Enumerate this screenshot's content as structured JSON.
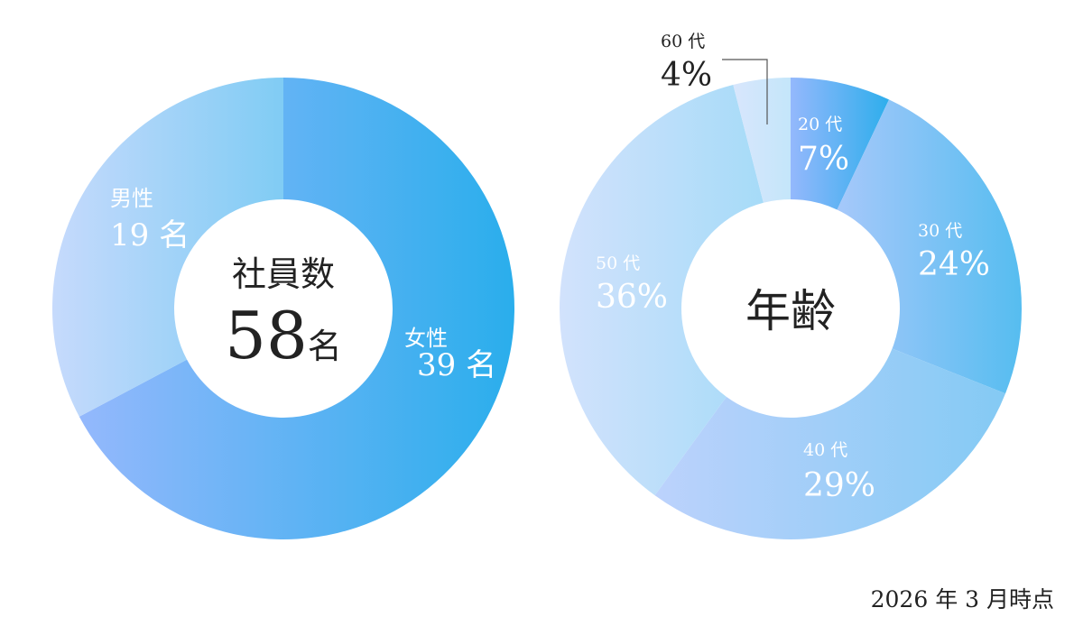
{
  "chart_data": [
    {
      "type": "pie",
      "donut": true,
      "center_label": "社員数",
      "center_value": "58",
      "center_unit": "名",
      "slices": [
        {
          "label": "女性",
          "value": 39,
          "value_text": "39",
          "unit": "名",
          "colors": [
            "#94b8fc",
            "#2aaeec"
          ],
          "label_color": "#ffffff"
        },
        {
          "label": "男性",
          "value": 19,
          "value_text": "19",
          "unit": "名",
          "colors": [
            "#c6dafc",
            "#80ccf4"
          ],
          "label_color": "#ffffff"
        }
      ]
    },
    {
      "type": "pie",
      "donut": true,
      "center_label": "年齢",
      "slices": [
        {
          "label": "20 代",
          "value": 7,
          "value_text": "7",
          "unit": "%",
          "colors": [
            "#94b8fc",
            "#2eaeec"
          ],
          "label_color": "#ffffff"
        },
        {
          "label": "30 代",
          "value": 24,
          "value_text": "24",
          "unit": "%",
          "colors": [
            "#a6c8fa",
            "#56bdf0"
          ],
          "label_color": "#ffffff"
        },
        {
          "label": "40 代",
          "value": 29,
          "value_text": "29",
          "unit": "%",
          "colors": [
            "#bcd2fc",
            "#84caf4"
          ],
          "label_color": "#ffffff"
        },
        {
          "label": "50 代",
          "value": 36,
          "value_text": "36",
          "unit": "%",
          "colors": [
            "#d2e2fc",
            "#a6dbf8"
          ],
          "label_color": "#ffffff"
        },
        {
          "label": "60 代",
          "value": 4,
          "value_text": "4",
          "unit": "%",
          "colors": [
            "#d8e6fc",
            "#c4e6fa"
          ],
          "label_color": "#222222"
        }
      ]
    }
  ],
  "footnote": "2026 年 3 月時点"
}
